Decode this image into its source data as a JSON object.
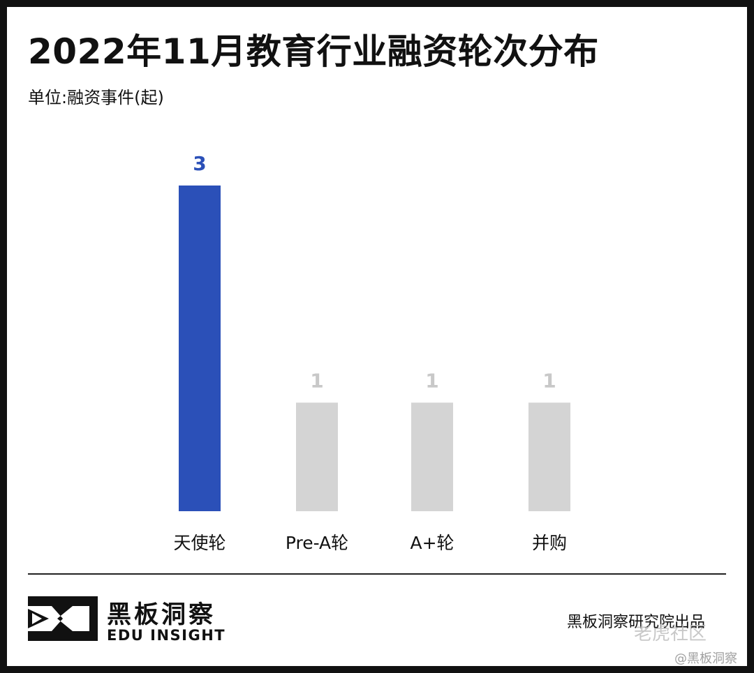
{
  "title": "2022年11月教育行业融资轮次分布",
  "unit_label": "单位:融资事件(起)",
  "chart_data": {
    "type": "bar",
    "categories": [
      "天使轮",
      "Pre-A轮",
      "A+轮",
      "并购"
    ],
    "values": [
      3,
      1,
      1,
      1
    ],
    "ylim": [
      0,
      3
    ],
    "grid": false,
    "bar_colors": [
      "#2b50b8",
      "#d4d4d4",
      "#d4d4d4",
      "#d4d4d4"
    ],
    "label_colors": [
      "#2b50b8",
      "#c8c8c8",
      "#c8c8c8",
      "#c8c8c8"
    ]
  },
  "footer": {
    "brand_cn": "黑板洞察",
    "brand_en": "EDU INSIGHT",
    "credit": "黑板洞察研究院出品",
    "logo_icon": "edu-insight-logo-icon"
  },
  "watermark": {
    "line1": "老虎社区",
    "line2": "@黑板洞察"
  }
}
